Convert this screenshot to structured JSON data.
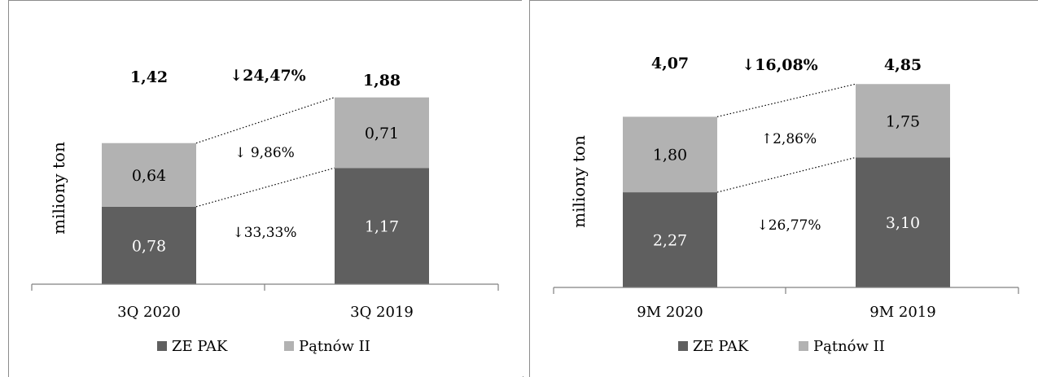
{
  "colors": {
    "ze_pak": "#5f5f5f",
    "patnow": "#b2b2b2",
    "axis": "#808080"
  },
  "chart_data": [
    {
      "type": "bar",
      "stacked": true,
      "ylabel": "miliony ton",
      "categories": [
        "3Q 2020",
        "3Q 2019"
      ],
      "series": [
        {
          "name": "ZE PAK",
          "values": [
            0.78,
            1.17
          ],
          "labels": [
            "0,78",
            "1,17"
          ]
        },
        {
          "name": "Pątnów II",
          "values": [
            0.64,
            0.71
          ],
          "labels": [
            "0,64",
            "0,71"
          ]
        }
      ],
      "totals": [
        "1,42",
        "1,88"
      ],
      "total_values": [
        1.42,
        1.88
      ],
      "changes": {
        "total": "↓24,47%",
        "patnow": "↓ 9,86%",
        "ze_pak": "↓33,33%"
      },
      "legend": {
        "position": "bottom",
        "items": [
          "ZE PAK",
          "Pątnów II"
        ]
      },
      "ylim": [
        0,
        2.5
      ],
      "grid": false
    },
    {
      "type": "bar",
      "stacked": true,
      "ylabel": "miliony ton",
      "categories": [
        "9M 2020",
        "9M 2019"
      ],
      "series": [
        {
          "name": "ZE PAK",
          "values": [
            2.27,
            3.1
          ],
          "labels": [
            "2,27",
            "3,10"
          ]
        },
        {
          "name": "Pątnów II",
          "values": [
            1.8,
            1.75
          ],
          "labels": [
            "1,80",
            "1,75"
          ]
        }
      ],
      "totals": [
        "4,07",
        "4,85"
      ],
      "total_values": [
        4.07,
        4.85
      ],
      "changes": {
        "total": "↓16,08%",
        "patnow": "↑2,86%",
        "ze_pak": "↓26,77%"
      },
      "legend": {
        "position": "bottom",
        "items": [
          "ZE PAK",
          "Pątnów II"
        ]
      },
      "ylim": [
        0,
        6.5
      ],
      "grid": false
    }
  ]
}
